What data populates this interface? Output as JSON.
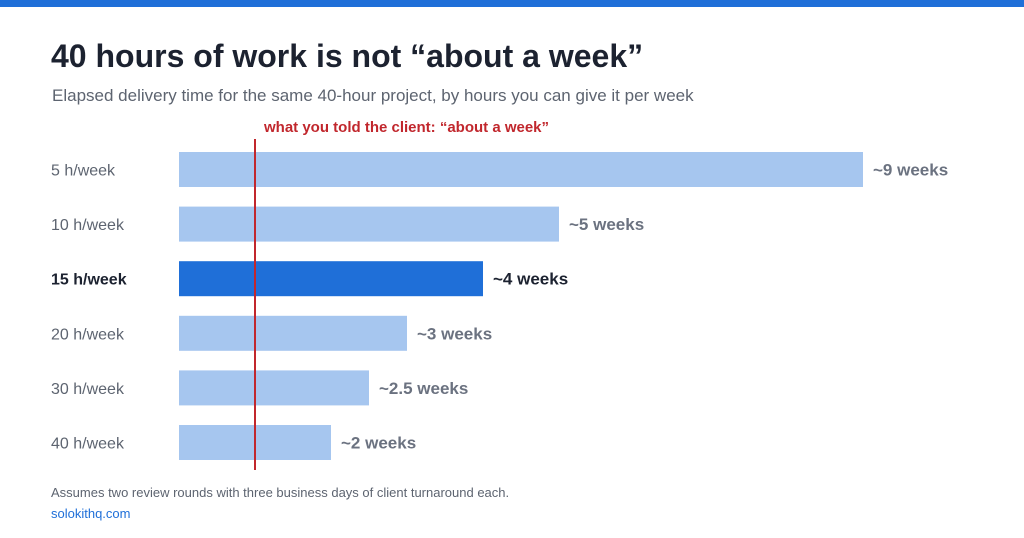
{
  "colors": {
    "top_bar": "#1f6fd8",
    "bar_default": "#a6c6ef",
    "bar_highlight": "#1f6fd8",
    "reference_line": "#c1272d",
    "label_default": "#5d6470",
    "label_highlight": "#1c2230",
    "value_default": "#6b7280",
    "value_highlight": "#1c2230",
    "link": "#1f6fd8"
  },
  "header": {
    "title": "40 hours of work is not “about a week”",
    "subtitle": "Elapsed delivery time for the same 40-hour project, by hours you can give it per week"
  },
  "chart_data": {
    "type": "bar",
    "orientation": "horizontal",
    "categories": [
      "5 h/week",
      "10 h/week",
      "15 h/week",
      "20 h/week",
      "30 h/week",
      "40 h/week"
    ],
    "values": [
      9,
      5,
      4,
      3,
      2.5,
      2
    ],
    "value_labels": [
      "~9 weeks",
      "~5 weeks",
      "~4 weeks",
      "~3 weeks",
      "~2.5 weeks",
      "~2 weeks"
    ],
    "highlighted_category": "15 h/week",
    "xlim": [
      0,
      9
    ],
    "reference_line": {
      "value": 1,
      "label": "what you told the client: “about a week”"
    },
    "grid": false,
    "legend": "none"
  },
  "footer": {
    "note": "Assumes two review rounds with three business days of client turnaround each.",
    "source": "solokithq.com"
  }
}
